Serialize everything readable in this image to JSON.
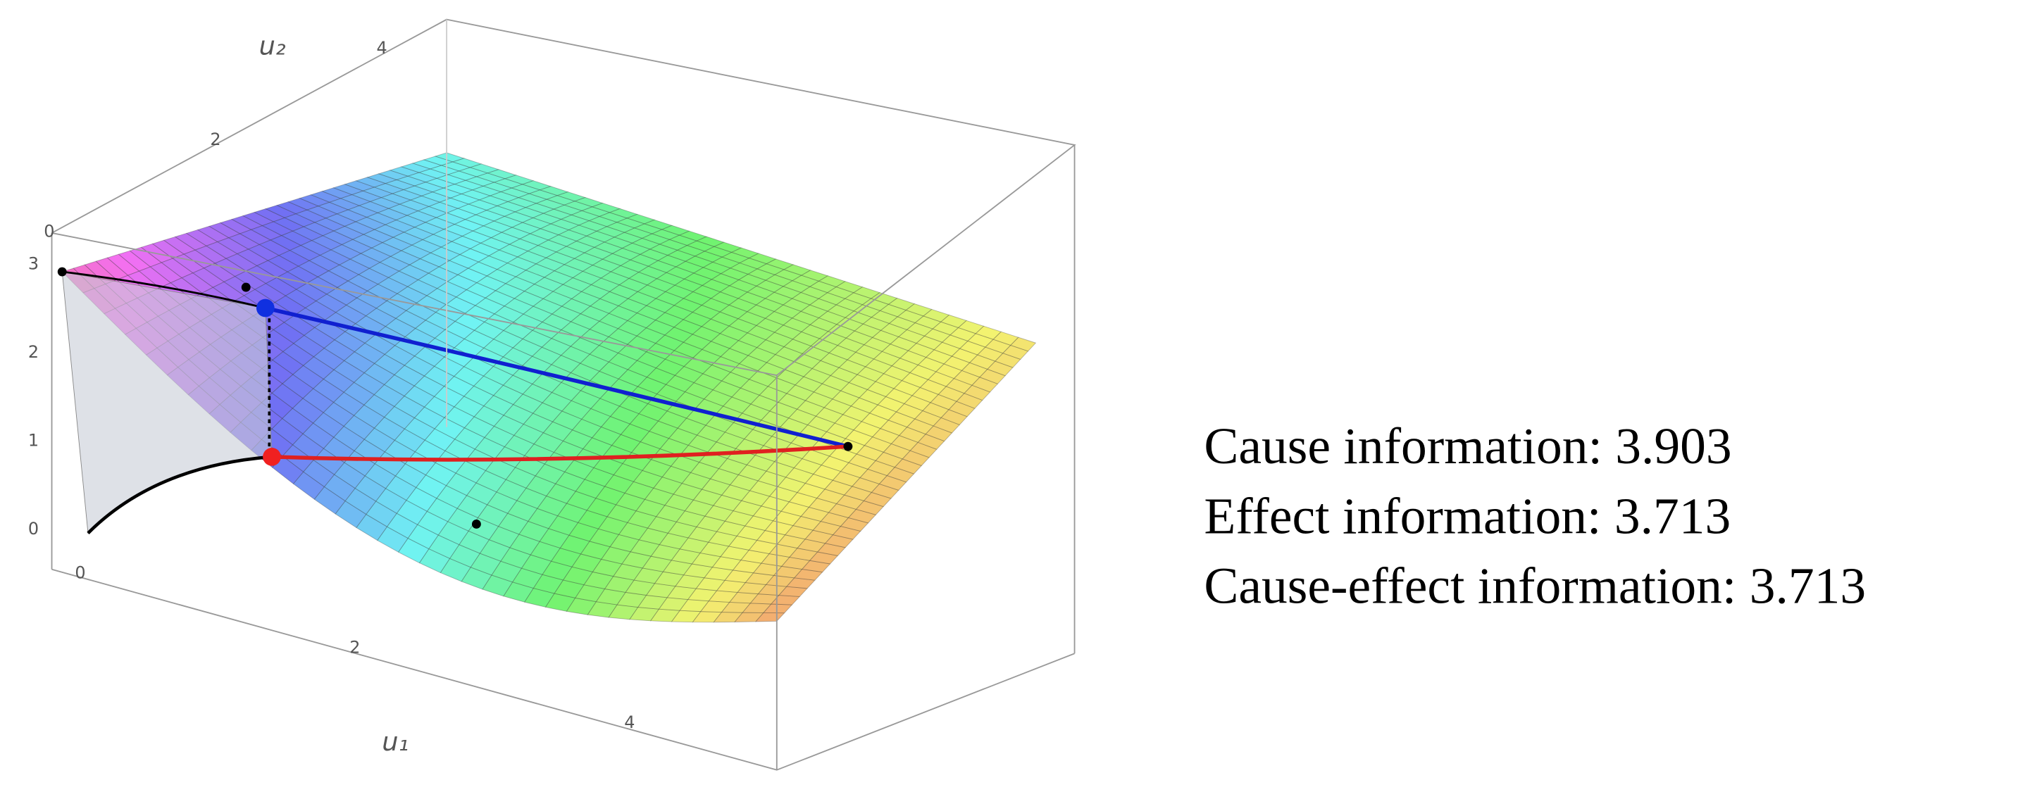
{
  "chart_data": {
    "type": "surface3d",
    "x_label": "u₁",
    "y_label": "u₂",
    "xticks": [
      0,
      2,
      4
    ],
    "yticks": [
      0,
      2,
      4
    ],
    "zticks": [
      0,
      1,
      2,
      3
    ],
    "annotations": [
      {
        "label": "Cause information:",
        "value": 3.903
      },
      {
        "label": "Effect information:",
        "value": 3.713
      },
      {
        "label": "Cause-effect information:",
        "value": 3.713
      }
    ]
  }
}
